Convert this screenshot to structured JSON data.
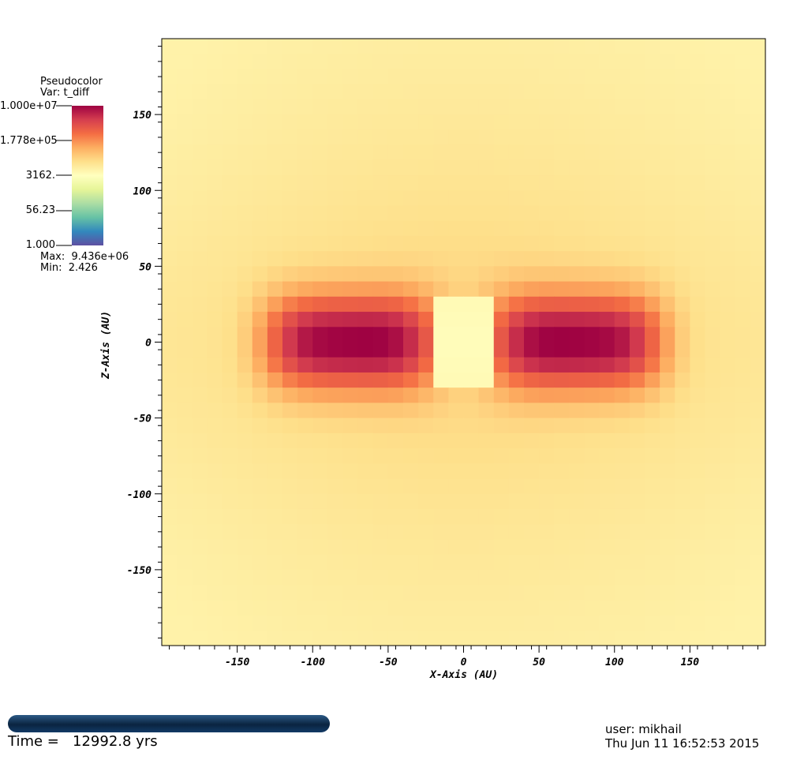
{
  "legend": {
    "title": "Pseudocolor",
    "var_label": "Var: t_diff",
    "max_label": "Max:  9.436e+06",
    "min_label": "Min:  2.426",
    "tick_labels": [
      "1.000e+07",
      "1.778e+05",
      "3162.",
      "56.23",
      "1.000"
    ],
    "colormap": [
      "#9e0142",
      "#d53e4f",
      "#f46d43",
      "#fdae61",
      "#fee08b",
      "#ffffbf",
      "#e6f598",
      "#abdda4",
      "#66c2a5",
      "#3288bd",
      "#5e4fa2"
    ]
  },
  "chart_data": {
    "type": "heatmap",
    "title": "",
    "variable": "t_diff",
    "scale": "log",
    "vmin": 1.0,
    "vmax": 10000000.0,
    "data_max": 9436000.0,
    "data_min": 2.426,
    "xlabel": "X-Axis (AU)",
    "ylabel": "Z-Axis (AU)",
    "xlim": [
      -200,
      200
    ],
    "ylim": [
      -200,
      200
    ],
    "xticks": [
      -150,
      -100,
      -50,
      0,
      50,
      100,
      150
    ],
    "yticks": [
      -150,
      -100,
      -50,
      0,
      50,
      100,
      150
    ],
    "grid_size": [
      40,
      40
    ],
    "features": [
      {
        "name": "left lobe",
        "x_range": [
          -140,
          -20
        ],
        "z_range": [
          -40,
          40
        ],
        "peak_x": -75,
        "peak_value": 9400000.0
      },
      {
        "name": "right lobe",
        "x_range": [
          20,
          140
        ],
        "z_range": [
          -40,
          40
        ],
        "peak_x": 75,
        "peak_value": 9400000.0
      },
      {
        "name": "central gap",
        "x_range": [
          -20,
          20
        ],
        "z_range": [
          -30,
          30
        ],
        "value": 3000.0
      },
      {
        "name": "background",
        "value": 15000.0
      }
    ]
  },
  "footer": {
    "time_label": "Time =   12992.8 yrs",
    "time_progress": 1.0,
    "user": "user: mikhail",
    "date": "Thu Jun 11 16:52:53 2015"
  }
}
